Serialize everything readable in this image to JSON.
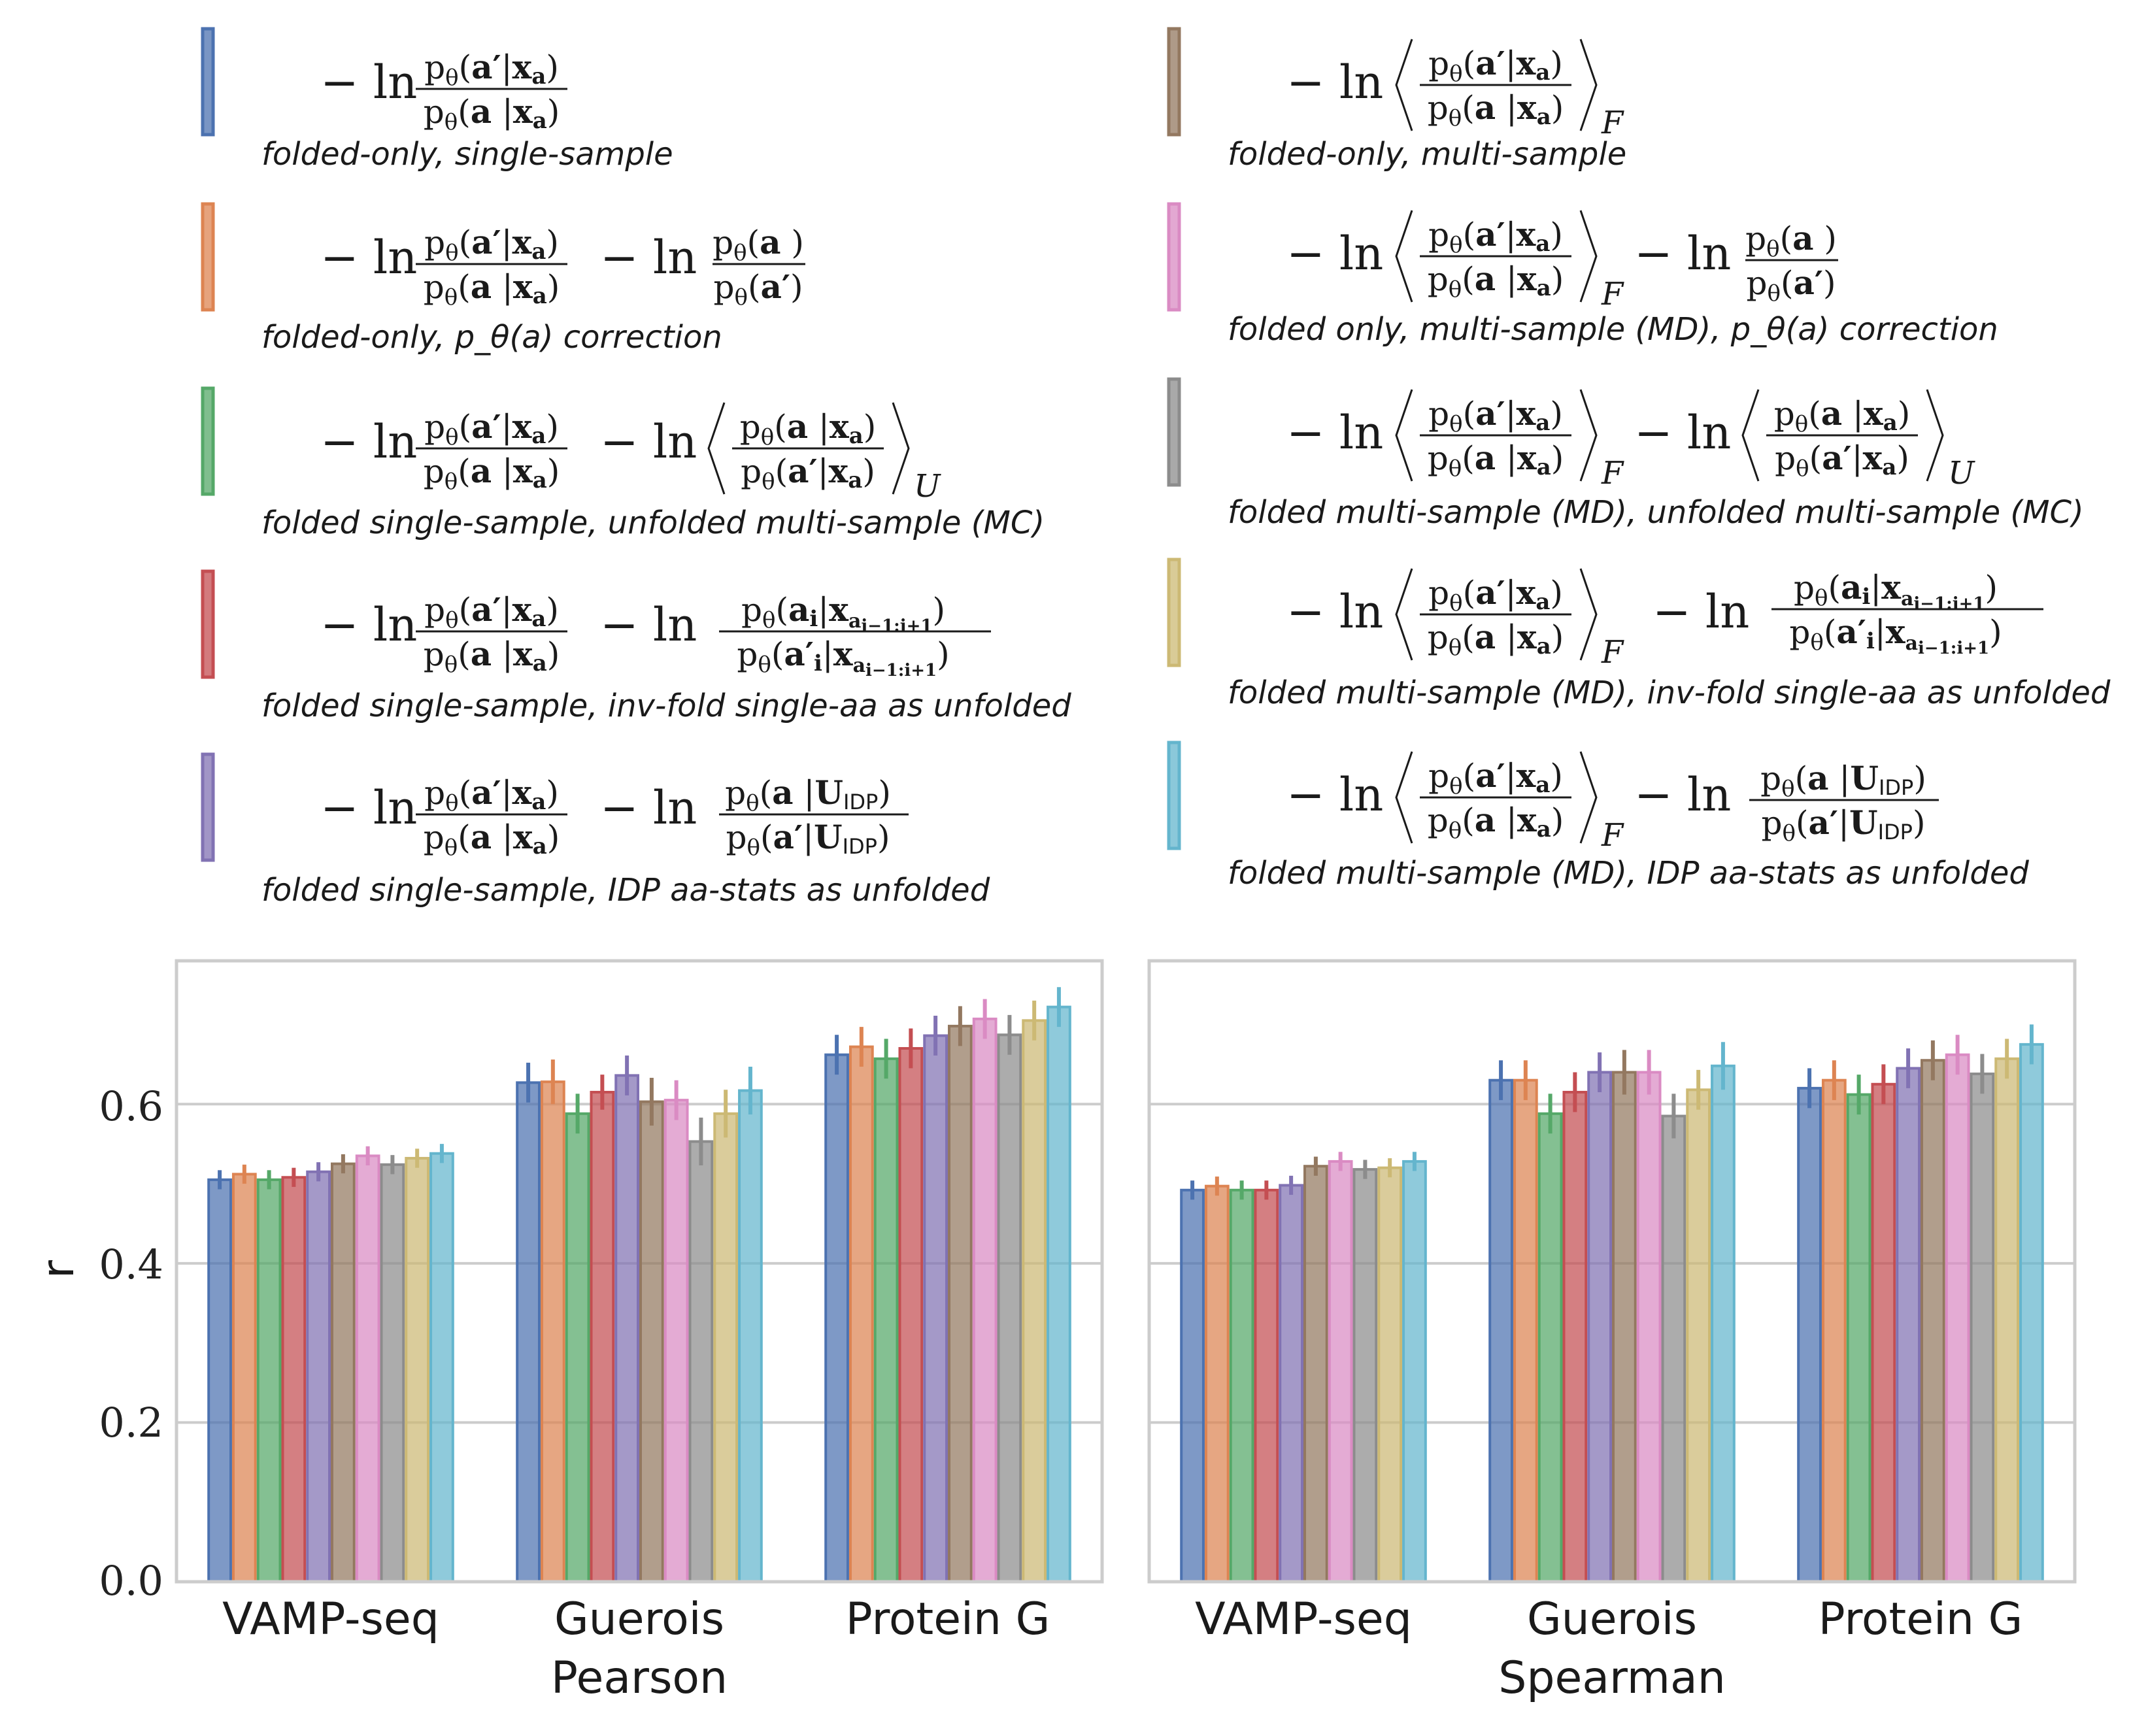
{
  "chart_data": {
    "type": "bar",
    "ylabel": "r",
    "ylim": [
      0,
      0.78
    ],
    "yticks": [
      0.0,
      0.2,
      0.4,
      0.6
    ],
    "ytick_labels": [
      "0.0",
      "0.2",
      "0.4",
      "0.6"
    ],
    "categories": [
      "VAMP-seq",
      "Guerois",
      "Protein G"
    ],
    "legend": [
      {
        "desc": "folded-only, single-sample",
        "color": "#4c72b0"
      },
      {
        "desc": "folded-only, p_θ(a) correction",
        "color": "#dd8452"
      },
      {
        "desc": "folded single-sample, unfolded multi-sample (MC)",
        "color": "#55a868"
      },
      {
        "desc": "folded single-sample, inv-fold single-aa as unfolded",
        "color": "#c44e52"
      },
      {
        "desc": "folded single-sample, IDP aa-stats as unfolded",
        "color": "#8172b3"
      },
      {
        "desc": "folded-only, multi-sample",
        "color": "#937860"
      },
      {
        "desc": "folded only, multi-sample (MD), p_θ(a) correction",
        "color": "#da8bc3"
      },
      {
        "desc": "folded multi-sample (MD), unfolded multi-sample (MC)",
        "color": "#8c8c8c"
      },
      {
        "desc": "folded multi-sample (MD), inv-fold single-aa as unfolded",
        "color": "#ccb974"
      },
      {
        "desc": "folded multi-sample (MD), IDP aa-stats as unfolded",
        "color": "#64b5cd"
      }
    ],
    "panels": [
      {
        "xlabel": "Pearson",
        "series_values": [
          [
            0.505,
            0.627,
            0.662
          ],
          [
            0.512,
            0.628,
            0.672
          ],
          [
            0.505,
            0.588,
            0.657
          ],
          [
            0.508,
            0.615,
            0.67
          ],
          [
            0.515,
            0.636,
            0.686
          ],
          [
            0.525,
            0.603,
            0.698
          ],
          [
            0.535,
            0.605,
            0.707
          ],
          [
            0.524,
            0.553,
            0.687
          ],
          [
            0.532,
            0.588,
            0.705
          ],
          [
            0.538,
            0.617,
            0.722
          ]
        ],
        "errors": [
          [
            0.012,
            0.025,
            0.025
          ],
          [
            0.012,
            0.028,
            0.025
          ],
          [
            0.012,
            0.025,
            0.025
          ],
          [
            0.012,
            0.022,
            0.025
          ],
          [
            0.012,
            0.025,
            0.025
          ],
          [
            0.012,
            0.03,
            0.025
          ],
          [
            0.012,
            0.025,
            0.025
          ],
          [
            0.012,
            0.03,
            0.025
          ],
          [
            0.012,
            0.03,
            0.025
          ],
          [
            0.012,
            0.03,
            0.025
          ]
        ]
      },
      {
        "xlabel": "Spearman",
        "series_values": [
          [
            0.492,
            0.63,
            0.62
          ],
          [
            0.497,
            0.63,
            0.63
          ],
          [
            0.492,
            0.588,
            0.612
          ],
          [
            0.492,
            0.615,
            0.625
          ],
          [
            0.498,
            0.64,
            0.645
          ],
          [
            0.522,
            0.64,
            0.655
          ],
          [
            0.528,
            0.64,
            0.662
          ],
          [
            0.518,
            0.585,
            0.638
          ],
          [
            0.52,
            0.618,
            0.657
          ],
          [
            0.528,
            0.648,
            0.675
          ]
        ],
        "errors": [
          [
            0.012,
            0.025,
            0.025
          ],
          [
            0.012,
            0.025,
            0.025
          ],
          [
            0.012,
            0.025,
            0.025
          ],
          [
            0.012,
            0.025,
            0.025
          ],
          [
            0.012,
            0.025,
            0.025
          ],
          [
            0.012,
            0.028,
            0.025
          ],
          [
            0.012,
            0.028,
            0.025
          ],
          [
            0.012,
            0.028,
            0.025
          ],
          [
            0.012,
            0.025,
            0.025
          ],
          [
            0.012,
            0.03,
            0.025
          ]
        ]
      }
    ]
  }
}
